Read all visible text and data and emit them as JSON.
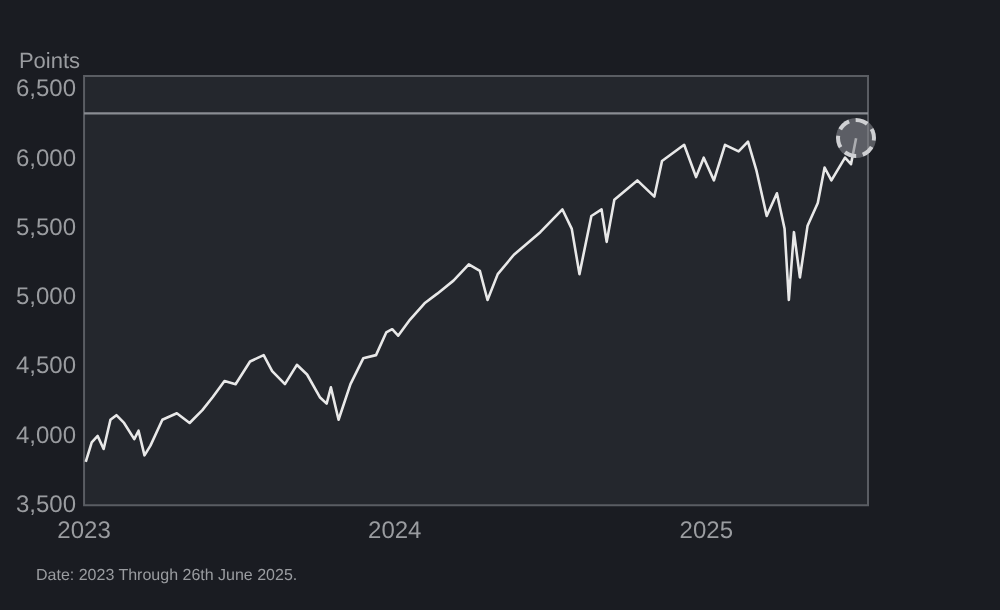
{
  "chart_data": {
    "type": "line",
    "ylabel": "Points",
    "annotations": [
      "Date: 2023 Through 26th June 2025."
    ],
    "x": [
      "2023-01-03",
      "2023-01-10",
      "2023-01-17",
      "2023-01-24",
      "2023-02-01",
      "2023-02-08",
      "2023-02-17",
      "2023-03-01",
      "2023-03-06",
      "2023-03-13",
      "2023-03-20",
      "2023-04-03",
      "2023-04-20",
      "2023-05-05",
      "2023-05-20",
      "2023-06-01",
      "2023-06-15",
      "2023-06-28",
      "2023-07-15",
      "2023-07-31",
      "2023-08-10",
      "2023-08-25",
      "2023-09-08",
      "2023-09-20",
      "2023-10-05",
      "2023-10-13",
      "2023-10-18",
      "2023-10-27",
      "2023-11-10",
      "2023-11-25",
      "2023-12-10",
      "2023-12-22",
      "2023-12-29",
      "2024-01-05",
      "2024-01-19",
      "2024-02-05",
      "2024-02-20",
      "2024-03-10",
      "2024-03-28",
      "2024-04-10",
      "2024-04-19",
      "2024-05-01",
      "2024-05-20",
      "2024-06-20",
      "2024-07-16",
      "2024-07-27",
      "2024-08-05",
      "2024-08-19",
      "2024-08-31",
      "2024-09-06",
      "2024-09-15",
      "2024-10-12",
      "2024-11-01",
      "2024-11-10",
      "2024-12-06",
      "2024-12-20",
      "2024-12-29",
      "2025-01-10",
      "2025-01-23",
      "2025-02-08",
      "2025-02-19",
      "2025-03-01",
      "2025-03-13",
      "2025-03-25",
      "2025-04-03",
      "2025-04-08",
      "2025-04-14",
      "2025-04-21",
      "2025-04-30",
      "2025-05-12",
      "2025-05-20",
      "2025-05-28",
      "2025-06-13",
      "2025-06-20",
      "2025-06-26"
    ],
    "series": [
      {
        "color": "#e8e8e8",
        "values": [
          3813,
          3953,
          4000,
          3906,
          4117,
          4150,
          4094,
          3977,
          4038,
          3860,
          3930,
          4117,
          4164,
          4094,
          4187,
          4280,
          4397,
          4374,
          4538,
          4584,
          4468,
          4374,
          4514,
          4444,
          4280,
          4234,
          4351,
          4117,
          4374,
          4561,
          4584,
          4748,
          4771,
          4724,
          4841,
          4958,
          5028,
          5122,
          5239,
          5192,
          4982,
          5169,
          5309,
          5472,
          5636,
          5496,
          5169,
          5589,
          5636,
          5402,
          5706,
          5846,
          5729,
          5986,
          6103,
          5870,
          6010,
          5846,
          6103,
          6056,
          6126,
          5916,
          5589,
          5753,
          5496,
          4982,
          5472,
          5145,
          5519,
          5683,
          5939,
          5846,
          6010,
          5963,
          6150
        ]
      }
    ],
    "xlim": [
      "2023-01-01",
      "2025-07-10"
    ],
    "xticks": [
      {
        "value": "2023-01-01",
        "label": "2023"
      },
      {
        "value": "2024-01-01",
        "label": "2024"
      },
      {
        "value": "2025-01-01",
        "label": "2025"
      }
    ],
    "ylim": [
      3500,
      6600
    ],
    "yticks": [
      {
        "value": 3500,
        "label": "3,500"
      },
      {
        "value": 4000,
        "label": "4,000"
      },
      {
        "value": 4500,
        "label": "4,500"
      },
      {
        "value": 5000,
        "label": "5,000"
      },
      {
        "value": 5500,
        "label": "5,500"
      },
      {
        "value": 6000,
        "label": "6,000"
      },
      {
        "value": 6500,
        "label": "6,500"
      }
    ],
    "ref_lines": [
      {
        "axis": "y",
        "value": 6330,
        "color": "#8a8d93"
      }
    ],
    "grid": false,
    "legend": false,
    "marker": "none",
    "line_style": "solid"
  }
}
